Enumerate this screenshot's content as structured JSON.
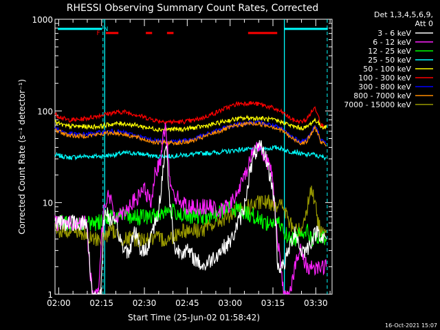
{
  "chart_data": {
    "type": "line",
    "title": "RHESSI Observing Summary Count Rates, Corrected",
    "xlabel": "Start Time (25-Jun-02 01:58:42)",
    "ylabel": "Corrected Count Rate (s⁻¹ detector⁻¹)",
    "yscale": "log",
    "ylim": [
      1,
      1000
    ],
    "xlim_min": [
      0,
      97
    ],
    "x_tick_labels": [
      "02:00",
      "02:15",
      "02:30",
      "02:45",
      "03:00",
      "03:15",
      "03:30"
    ],
    "x_tick_min": [
      1.3,
      16.3,
      31.3,
      46.3,
      61.3,
      76.3,
      91.3
    ],
    "y_tick_labels": [
      "1",
      "10",
      "100",
      "1000"
    ],
    "y_tick_values": [
      1,
      10,
      100,
      1000
    ],
    "legend_header": [
      "Det 1,3,4,5,6,9,",
      "Att 0"
    ],
    "legend_position": "right",
    "timestamp": "16-Oct-2021 15:07",
    "series": [
      {
        "name": "3 - 6 keV",
        "color": "#ffffff",
        "values": [
          [
            0,
            6
          ],
          [
            6,
            6
          ],
          [
            11,
            6
          ],
          [
            13,
            1
          ],
          [
            16,
            1
          ],
          [
            17,
            6
          ],
          [
            18,
            8
          ],
          [
            20,
            6
          ],
          [
            22,
            5
          ],
          [
            24,
            3
          ],
          [
            26,
            3
          ],
          [
            28,
            5
          ],
          [
            30,
            3
          ],
          [
            32,
            3
          ],
          [
            34,
            5
          ],
          [
            36,
            7
          ],
          [
            38,
            25
          ],
          [
            39,
            45
          ],
          [
            40,
            12
          ],
          [
            42,
            3
          ],
          [
            46,
            3
          ],
          [
            52,
            2
          ],
          [
            58,
            3
          ],
          [
            62,
            4
          ],
          [
            64,
            6
          ],
          [
            66,
            8
          ],
          [
            68,
            20
          ],
          [
            70,
            35
          ],
          [
            72,
            40
          ],
          [
            74,
            30
          ],
          [
            76,
            15
          ],
          [
            77,
            9
          ],
          [
            78,
            2
          ],
          [
            80,
            2
          ],
          [
            84,
            5
          ],
          [
            86,
            3
          ],
          [
            88,
            3
          ],
          [
            90,
            4
          ],
          [
            92,
            5
          ],
          [
            94,
            4
          ],
          [
            95,
            4
          ]
        ]
      },
      {
        "name": "6 - 12 keV",
        "color": "#ff22ff",
        "values": [
          [
            0,
            6
          ],
          [
            6,
            6
          ],
          [
            11,
            6
          ],
          [
            13,
            1
          ],
          [
            15,
            1
          ],
          [
            17,
            9
          ],
          [
            19,
            12
          ],
          [
            21,
            7
          ],
          [
            24,
            8
          ],
          [
            27,
            10
          ],
          [
            29,
            11
          ],
          [
            31,
            15
          ],
          [
            32,
            12
          ],
          [
            34,
            10
          ],
          [
            35,
            20
          ],
          [
            37,
            30
          ],
          [
            38,
            70
          ],
          [
            39,
            55
          ],
          [
            40,
            20
          ],
          [
            42,
            12
          ],
          [
            46,
            9
          ],
          [
            50,
            9
          ],
          [
            54,
            9
          ],
          [
            58,
            8
          ],
          [
            62,
            10
          ],
          [
            64,
            13
          ],
          [
            66,
            18
          ],
          [
            68,
            28
          ],
          [
            70,
            40
          ],
          [
            71,
            42
          ],
          [
            72,
            40
          ],
          [
            74,
            30
          ],
          [
            76,
            20
          ],
          [
            77,
            9
          ],
          [
            78,
            4
          ],
          [
            80,
            1
          ],
          [
            82,
            1
          ],
          [
            84,
            2
          ],
          [
            86,
            3
          ],
          [
            88,
            2
          ],
          [
            90,
            2
          ],
          [
            95,
            2
          ]
        ]
      },
      {
        "name": "12 - 25 keV",
        "color": "#00ff00",
        "values": [
          [
            0,
            6
          ],
          [
            6,
            6
          ],
          [
            11,
            6
          ],
          [
            15,
            6
          ],
          [
            18,
            7
          ],
          [
            22,
            7
          ],
          [
            26,
            7
          ],
          [
            30,
            7
          ],
          [
            34,
            7
          ],
          [
            38,
            8
          ],
          [
            42,
            8
          ],
          [
            46,
            7
          ],
          [
            50,
            7
          ],
          [
            54,
            7
          ],
          [
            58,
            8
          ],
          [
            62,
            9
          ],
          [
            66,
            8
          ],
          [
            70,
            7
          ],
          [
            74,
            6
          ],
          [
            76,
            6
          ],
          [
            78,
            6
          ],
          [
            80,
            5
          ],
          [
            82,
            4
          ],
          [
            84,
            4
          ],
          [
            86,
            5
          ],
          [
            88,
            5
          ],
          [
            90,
            4
          ],
          [
            92,
            4
          ],
          [
            95,
            4
          ]
        ]
      },
      {
        "name": "25 - 50 keV",
        "color": "#00ffff",
        "values": [
          [
            0,
            33
          ],
          [
            5,
            31
          ],
          [
            10,
            32
          ],
          [
            15,
            32
          ],
          [
            20,
            33
          ],
          [
            25,
            35
          ],
          [
            30,
            34
          ],
          [
            35,
            32
          ],
          [
            40,
            32
          ],
          [
            45,
            33
          ],
          [
            50,
            34
          ],
          [
            55,
            35
          ],
          [
            60,
            36
          ],
          [
            65,
            38
          ],
          [
            70,
            38
          ],
          [
            75,
            39
          ],
          [
            78,
            40
          ],
          [
            80,
            38
          ],
          [
            82,
            36
          ],
          [
            84,
            36
          ],
          [
            86,
            34
          ],
          [
            88,
            33
          ],
          [
            90,
            34
          ],
          [
            92,
            32
          ],
          [
            95,
            31
          ]
        ]
      },
      {
        "name": "50 - 100 keV",
        "color": "#ffff00",
        "values": [
          [
            0,
            75
          ],
          [
            4,
            68
          ],
          [
            8,
            68
          ],
          [
            12,
            67
          ],
          [
            16,
            68
          ],
          [
            20,
            72
          ],
          [
            24,
            73
          ],
          [
            28,
            70
          ],
          [
            32,
            66
          ],
          [
            36,
            63
          ],
          [
            40,
            63
          ],
          [
            44,
            63
          ],
          [
            48,
            65
          ],
          [
            52,
            68
          ],
          [
            56,
            72
          ],
          [
            60,
            78
          ],
          [
            64,
            82
          ],
          [
            68,
            84
          ],
          [
            72,
            83
          ],
          [
            76,
            80
          ],
          [
            80,
            75
          ],
          [
            83,
            68
          ],
          [
            86,
            65
          ],
          [
            88,
            66
          ],
          [
            90,
            75
          ],
          [
            91,
            80
          ],
          [
            92,
            75
          ],
          [
            93,
            68
          ],
          [
            95,
            66
          ]
        ]
      },
      {
        "name": "100 - 300 keV",
        "color": "#ff0000",
        "values": [
          [
            0,
            92
          ],
          [
            4,
            80
          ],
          [
            8,
            80
          ],
          [
            12,
            84
          ],
          [
            16,
            90
          ],
          [
            20,
            95
          ],
          [
            24,
            98
          ],
          [
            28,
            92
          ],
          [
            32,
            84
          ],
          [
            36,
            78
          ],
          [
            40,
            76
          ],
          [
            44,
            76
          ],
          [
            48,
            78
          ],
          [
            52,
            85
          ],
          [
            56,
            95
          ],
          [
            60,
            108
          ],
          [
            64,
            120
          ],
          [
            68,
            122
          ],
          [
            72,
            118
          ],
          [
            76,
            108
          ],
          [
            80,
            95
          ],
          [
            83,
            80
          ],
          [
            86,
            76
          ],
          [
            88,
            80
          ],
          [
            90,
            100
          ],
          [
            91,
            108
          ],
          [
            92,
            95
          ],
          [
            93,
            72
          ],
          [
            94,
            68
          ],
          [
            95,
            70
          ]
        ]
      },
      {
        "name": "300 - 800 keV",
        "color": "#0000ff",
        "values": [
          [
            0,
            65
          ],
          [
            4,
            57
          ],
          [
            8,
            55
          ],
          [
            12,
            56
          ],
          [
            16,
            58
          ],
          [
            20,
            60
          ],
          [
            24,
            58
          ],
          [
            28,
            54
          ],
          [
            32,
            50
          ],
          [
            36,
            47
          ],
          [
            40,
            47
          ],
          [
            44,
            47
          ],
          [
            48,
            49
          ],
          [
            52,
            54
          ],
          [
            56,
            60
          ],
          [
            60,
            66
          ],
          [
            64,
            72
          ],
          [
            68,
            75
          ],
          [
            72,
            74
          ],
          [
            76,
            70
          ],
          [
            80,
            62
          ],
          [
            83,
            52
          ],
          [
            86,
            47
          ],
          [
            88,
            48
          ],
          [
            90,
            60
          ],
          [
            91,
            68
          ],
          [
            92,
            60
          ],
          [
            93,
            48
          ],
          [
            95,
            44
          ]
        ]
      },
      {
        "name": "800 - 7000 keV",
        "color": "#ff8c00",
        "values": [
          [
            0,
            63
          ],
          [
            4,
            55
          ],
          [
            8,
            53
          ],
          [
            12,
            54
          ],
          [
            16,
            56
          ],
          [
            20,
            58
          ],
          [
            24,
            56
          ],
          [
            28,
            52
          ],
          [
            32,
            48
          ],
          [
            36,
            45
          ],
          [
            40,
            45
          ],
          [
            44,
            45
          ],
          [
            48,
            47
          ],
          [
            52,
            52
          ],
          [
            56,
            58
          ],
          [
            60,
            64
          ],
          [
            64,
            70
          ],
          [
            68,
            73
          ],
          [
            72,
            72
          ],
          [
            76,
            68
          ],
          [
            80,
            60
          ],
          [
            83,
            50
          ],
          [
            86,
            45
          ],
          [
            88,
            46
          ],
          [
            90,
            58
          ],
          [
            91,
            65
          ],
          [
            92,
            58
          ],
          [
            93,
            46
          ],
          [
            95,
            42
          ]
        ]
      },
      {
        "name": "7000 - 15000 keV",
        "color": "#999900",
        "values": [
          [
            0,
            5
          ],
          [
            4,
            5
          ],
          [
            8,
            5
          ],
          [
            12,
            4
          ],
          [
            16,
            4
          ],
          [
            20,
            5
          ],
          [
            24,
            4
          ],
          [
            28,
            4
          ],
          [
            32,
            4
          ],
          [
            36,
            4
          ],
          [
            40,
            4
          ],
          [
            44,
            5
          ],
          [
            48,
            5
          ],
          [
            52,
            5
          ],
          [
            56,
            6
          ],
          [
            60,
            7
          ],
          [
            64,
            8
          ],
          [
            68,
            9
          ],
          [
            72,
            10
          ],
          [
            76,
            10
          ],
          [
            80,
            9
          ],
          [
            82,
            6
          ],
          [
            84,
            5
          ],
          [
            86,
            5
          ],
          [
            88,
            8
          ],
          [
            89,
            12
          ],
          [
            90,
            14
          ],
          [
            91,
            10
          ],
          [
            92,
            6
          ],
          [
            93,
            5
          ],
          [
            95,
            5
          ]
        ]
      }
    ],
    "attenuator_segments_min": [
      [
        1,
        16.5
      ],
      [
        80.3,
        95.5
      ]
    ],
    "attenuator_label": "N",
    "attenuator_label_min": 17.8,
    "flare_label": "F",
    "flare_label_min": 15.2,
    "flare_segments_min": [
      [
        17.8,
        22.2
      ],
      [
        31.8,
        34
      ],
      [
        39.2,
        41.5
      ],
      [
        67.6,
        77.8
      ]
    ],
    "dashed_vlines_min": [
      16.8,
      95.3
    ],
    "solid_vlines_min": [
      17.4,
      80.3
    ]
  }
}
